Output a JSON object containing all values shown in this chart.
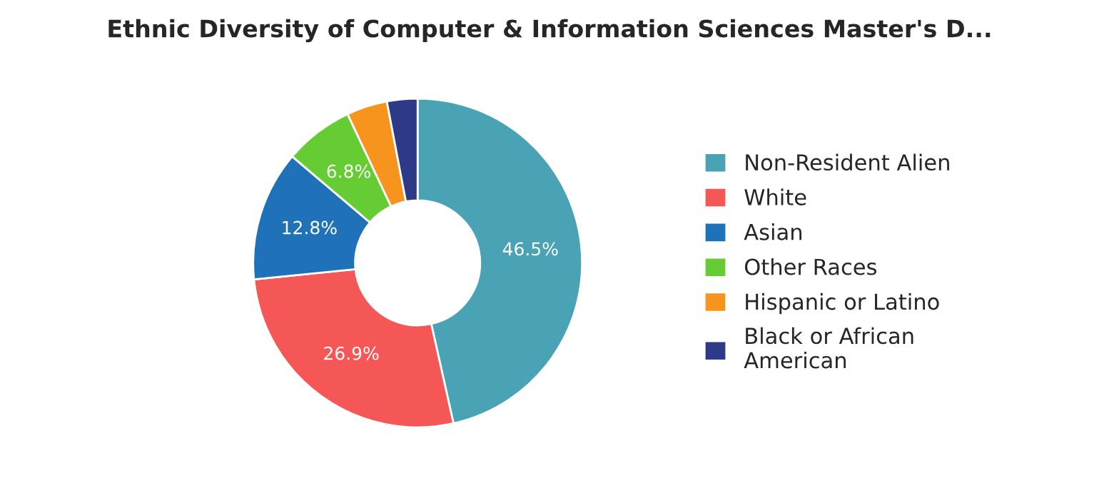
{
  "chart_data": {
    "type": "donut",
    "title": "Ethnic Diversity of Computer & Information Sciences Master's D...",
    "categories": [
      "Non-Resident Alien",
      "White",
      "Asian",
      "Other Races",
      "Hispanic or Latino",
      "Black or African\nAmerican"
    ],
    "values": [
      46.5,
      26.9,
      12.8,
      6.8,
      4.0,
      3.0
    ],
    "value_labels": [
      "46.5%",
      "26.9%",
      "12.8%",
      "6.8%",
      null,
      null
    ],
    "colors": [
      "#4aa3b5",
      "#f55656",
      "#1f72b8",
      "#66cc33",
      "#f7941d",
      "#2e3a87"
    ],
    "legend": "right"
  }
}
